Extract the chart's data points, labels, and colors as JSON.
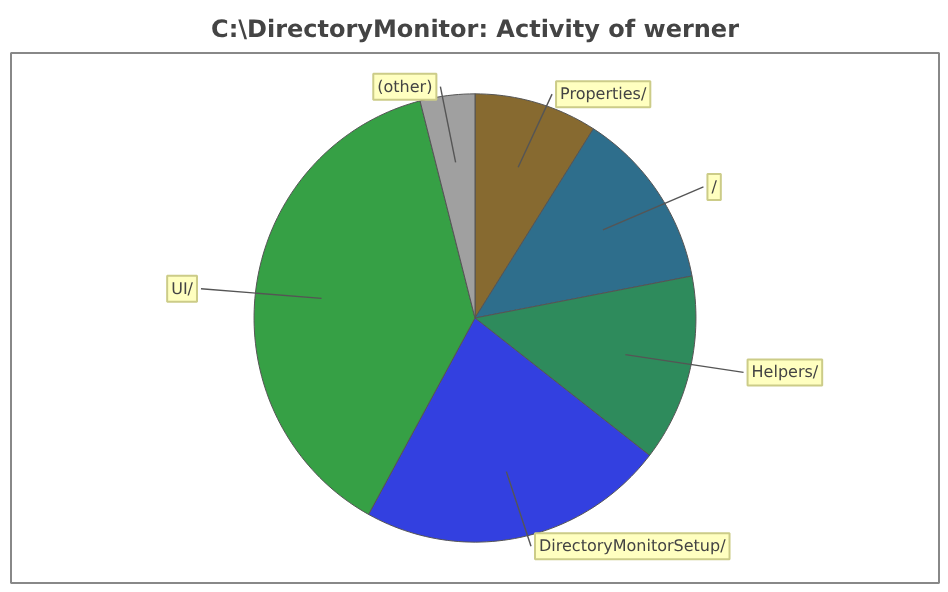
{
  "chart_data": {
    "type": "pie",
    "title": "C:\\DirectoryMonitor: Activity of werner",
    "categories": [
      "Properties/",
      "/",
      "Helpers/",
      "DirectoryMonitorSetup/",
      "UI/",
      "(other)"
    ],
    "values": [
      9,
      13,
      13.5,
      22.5,
      38,
      4
    ],
    "colors": [
      "#876a30",
      "#2e6e8c",
      "#2e8b5c",
      "#3340e0",
      "#36a045",
      "#a0a0a0"
    ]
  }
}
